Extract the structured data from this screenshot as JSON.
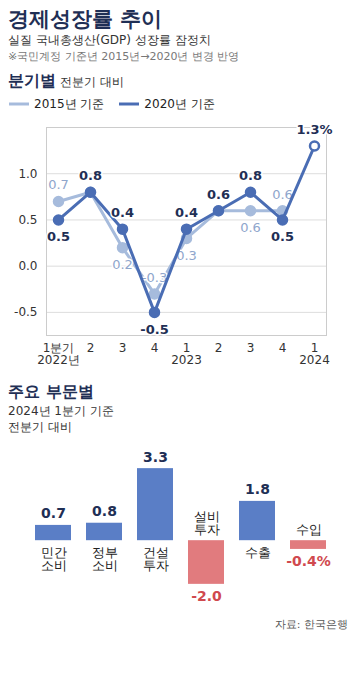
{
  "title": "경제성장률 추이",
  "subtitle": "실질 국내총생산(GDP) 성장률 잠정치",
  "note": "※국민계정 기준년 2015년→2020년 변경 반영",
  "source": "자료: 한국은행",
  "chart_data": [
    {
      "type": "line",
      "title": "분기별",
      "subtitle": "전분기 대비",
      "categories": [
        "1분기\n2022년",
        "2",
        "3",
        "4",
        "1\n2023",
        "2",
        "3",
        "4",
        "1\n2024"
      ],
      "series": [
        {
          "name": "2015년 기준",
          "color": "#a6bbdc",
          "values": [
            0.7,
            0.8,
            0.2,
            -0.3,
            0.3,
            0.6,
            0.6,
            0.6,
            null
          ],
          "value_labels": [
            "0.7",
            null,
            "0.2",
            "-0.3",
            "0.3",
            null,
            "0.6",
            "0.6",
            null
          ]
        },
        {
          "name": "2020년 기준",
          "color": "#4a6db4",
          "values": [
            0.5,
            0.8,
            0.4,
            -0.5,
            0.4,
            0.6,
            0.8,
            0.5,
            1.3
          ],
          "value_labels": [
            "0.5",
            "0.8",
            "0.4",
            "-0.5",
            "0.4",
            "0.6",
            "0.8",
            "0.5",
            "1.3%"
          ]
        }
      ],
      "ylim": [
        -0.75,
        1.5
      ],
      "yticks": [
        -0.5,
        {
          "value": 0,
          "label": "0.0"
        },
        0.5,
        {
          "value": 1,
          "label": "1.0"
        }
      ],
      "grid": true,
      "legend": "top-left",
      "marker": "circle",
      "data_labels": true
    },
    {
      "type": "bar",
      "title": "주요 부문별",
      "subtitle": "2024년 1분기 기준\n전분기 대비",
      "categories": [
        "민간\n소비",
        "정부\n소비",
        "건설\n투자",
        "설비\n투자",
        "수출",
        "수입"
      ],
      "values": [
        0.7,
        0.8,
        3.3,
        -2.0,
        1.8,
        -0.4
      ],
      "value_labels": [
        "0.7",
        "0.8",
        "3.3",
        "-2.0",
        "1.8",
        "-0.4%"
      ],
      "colors": [
        "#5a7ec6",
        "#5a7ec6",
        "#5a7ec6",
        "#e17b7e",
        "#5a7ec6",
        "#e17b7e"
      ],
      "data_labels": true
    }
  ]
}
